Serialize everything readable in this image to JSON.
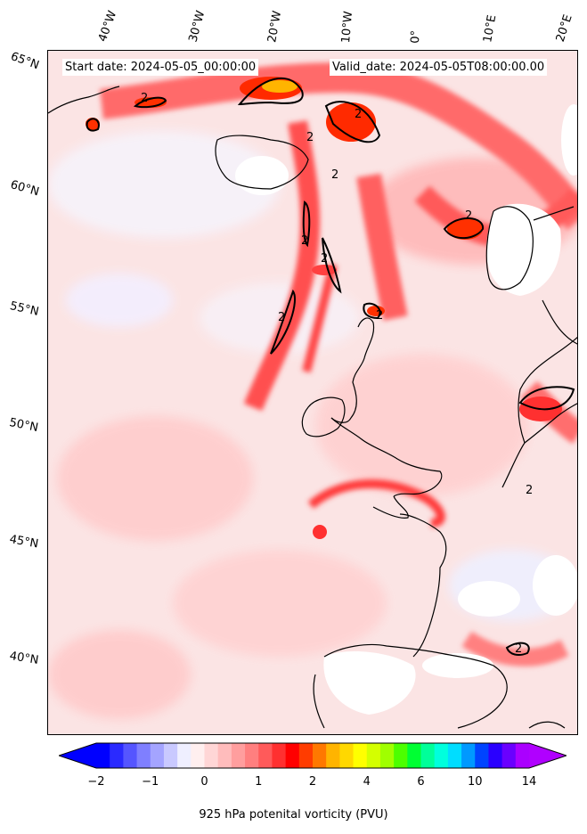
{
  "header": {
    "start_date": "Start date: 2024-05-05_00:00:00",
    "valid_date": "Valid_date: 2024-05-05T08:00:00.00"
  },
  "lat_labels": [
    "65°N",
    "60°N",
    "55°N",
    "50°N",
    "45°N",
    "40°N"
  ],
  "lon_labels": [
    "40°W",
    "30°W",
    "20°W",
    "10°W",
    "0°",
    "10°E",
    "20°E"
  ],
  "contour_label": "2",
  "colorbar": {
    "title": "925 hPa potenital vorticity (PVU)",
    "ticks": [
      "−2",
      "−1",
      "0",
      "1",
      "2",
      "4",
      "6",
      "10",
      "14"
    ],
    "colors": [
      "#0000ff",
      "#2a2aff",
      "#5555ff",
      "#7f7fff",
      "#a4a4ff",
      "#c9c9ff",
      "#efefff",
      "#ffefef",
      "#ffd6d6",
      "#ffbcbc",
      "#ff9e9e",
      "#ff7f7f",
      "#ff5a5a",
      "#ff3030",
      "#ff0000",
      "#ff3c00",
      "#ff7800",
      "#ffb400",
      "#ffd800",
      "#ffff00",
      "#d4ff00",
      "#a0ff00",
      "#4cff00",
      "#00ff33",
      "#00ff99",
      "#00ffdd",
      "#00ddff",
      "#0099ff",
      "#0044ff",
      "#2a00ff",
      "#6a00ff",
      "#aa00ff"
    ],
    "under_color": "#0000ff",
    "over_color": "#b000ff"
  }
}
